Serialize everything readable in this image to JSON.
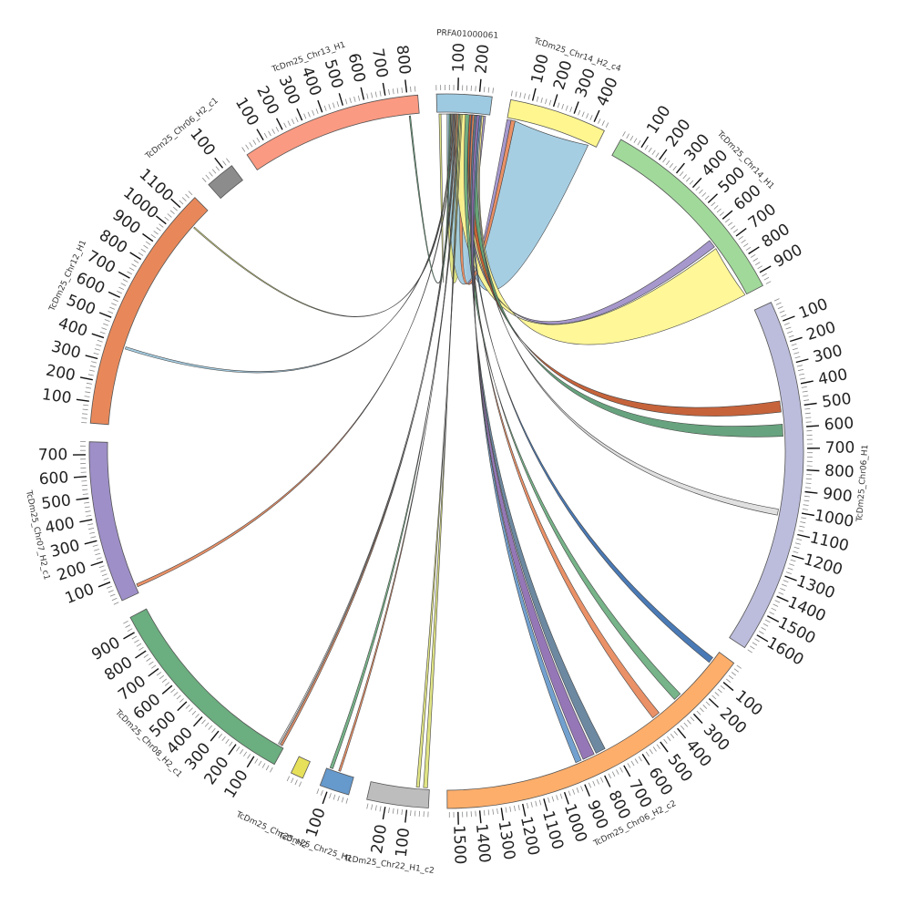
{
  "diagram": {
    "type": "circos",
    "chromosomes": [
      {
        "id": "PRFA",
        "label": "PRFA01000061",
        "length": 260,
        "color": "#9ecae1",
        "tick_step": 100,
        "reverse": false
      },
      {
        "id": "C14c4",
        "label": "TcDm25_Chr14_H2_c4",
        "length": 460,
        "color": "#fff68f",
        "tick_step": 100,
        "reverse": false
      },
      {
        "id": "C14H1",
        "label": "TcDm25_Chr14_H1",
        "length": 960,
        "color": "#a1d99b",
        "tick_step": 100,
        "reverse": false
      },
      {
        "id": "C06H1",
        "label": "TcDm25_Chr06_H1",
        "length": 1680,
        "color": "#bcbddc",
        "tick_step": 100,
        "reverse": false
      },
      {
        "id": "C06c2",
        "label": "TcDm25_Chr06_H2_c2",
        "length": 1550,
        "color": "#fdae6b",
        "tick_step": 100,
        "reverse": false
      },
      {
        "id": "C22",
        "label": "TcDm25_Chr22_H1_c2",
        "length": 290,
        "color": "#bdbdbd",
        "tick_step": 100,
        "reverse": false
      },
      {
        "id": "CB",
        "label": "TcDm25_Chr25_H1",
        "length": 140,
        "color": "#6699cc",
        "tick_step": 100,
        "reverse": false
      },
      {
        "id": "CA",
        "label": "TcDm25_Chr25_H2",
        "length": 60,
        "color": "#e6e05a",
        "tick_step": 100,
        "reverse": false
      },
      {
        "id": "C08",
        "label": "TcDm25_Chr08_H2_c1",
        "length": 970,
        "color": "#6bae7f",
        "tick_step": 100,
        "reverse": false
      },
      {
        "id": "C07",
        "label": "TcDm25_Chr07_H2_c1",
        "length": 760,
        "color": "#9e8fc8",
        "tick_step": 100,
        "reverse": false
      },
      {
        "id": "C12",
        "label": "TcDm25_Chr12_H1",
        "length": 1180,
        "color": "#e8885a",
        "tick_step": 100,
        "reverse": false
      },
      {
        "id": "C06c1",
        "label": "TcDm25_Chr06_H2_c1",
        "length": 140,
        "color": "#8c8c8c",
        "tick_step": 100,
        "reverse": false
      },
      {
        "id": "C13",
        "label": "TcDm25_Chr13_H1",
        "length": 850,
        "color": "#fb9a82",
        "tick_step": 100,
        "reverse": false
      }
    ],
    "links": [
      {
        "from": [
          "PRFA",
          10,
          200
        ],
        "to": [
          "PRFA",
          20,
          50
        ],
        "color": "#dde27a"
      },
      {
        "from": [
          "PRFA",
          200,
          240
        ],
        "to": [
          "C14c4",
          0,
          20
        ],
        "color": "#9e8fc8"
      },
      {
        "from": [
          "PRFA",
          50,
          160
        ],
        "to": [
          "C14c4",
          40,
          420
        ],
        "color": "#9ecae1"
      },
      {
        "from": [
          "PRFA",
          130,
          150
        ],
        "to": [
          "C14c4",
          20,
          40
        ],
        "color": "#e8885a"
      },
      {
        "from": [
          "PRFA",
          90,
          230
        ],
        "to": [
          "C14H1",
          690,
          960
        ],
        "color": "#fff68f"
      },
      {
        "from": [
          "PRFA",
          150,
          160
        ],
        "to": [
          "C14H1",
          640,
          680
        ],
        "color": "#9e8fc8"
      },
      {
        "from": [
          "PRFA",
          160,
          185
        ],
        "to": [
          "C06H1",
          465,
          520
        ],
        "color": "#c1562a"
      },
      {
        "from": [
          "PRFA",
          185,
          215
        ],
        "to": [
          "C06H1",
          580,
          640
        ],
        "color": "#5a9b73"
      },
      {
        "from": [
          "PRFA",
          215,
          222
        ],
        "to": [
          "C06H1",
          1000,
          1030
        ],
        "color": "#dddddd"
      },
      {
        "from": [
          "PRFA",
          170,
          180
        ],
        "to": [
          "C06c2",
          40,
          70
        ],
        "color": "#3b6fb0"
      },
      {
        "from": [
          "PRFA",
          140,
          160
        ],
        "to": [
          "C06c2",
          280,
          320
        ],
        "color": "#6bae7f"
      },
      {
        "from": [
          "PRFA",
          175,
          185
        ],
        "to": [
          "C06c2",
          420,
          460
        ],
        "color": "#e8885a"
      },
      {
        "from": [
          "PRFA",
          185,
          195
        ],
        "to": [
          "C06c2",
          740,
          790
        ],
        "color": "#5f7f99"
      },
      {
        "from": [
          "PRFA",
          195,
          210
        ],
        "to": [
          "C06c2",
          800,
          860
        ],
        "color": "#8c6bb1"
      },
      {
        "from": [
          "PRFA",
          210,
          218
        ],
        "to": [
          "C06c2",
          870,
          900
        ],
        "color": "#6699cc"
      },
      {
        "from": [
          "PRFA",
          110,
          118
        ],
        "to": [
          "C22",
          10,
          30
        ],
        "color": "#dde27a"
      },
      {
        "from": [
          "PRFA",
          118,
          124
        ],
        "to": [
          "C22",
          50,
          65
        ],
        "color": "#dde27a"
      },
      {
        "from": [
          "PRFA",
          100,
          106
        ],
        "to": [
          "CB",
          70,
          80
        ],
        "color": "#e8885a"
      },
      {
        "from": [
          "PRFA",
          106,
          112
        ],
        "to": [
          "CB",
          110,
          125
        ],
        "color": "#6bae7f"
      },
      {
        "from": [
          "PRFA",
          92,
          96
        ],
        "to": [
          "C08",
          10,
          20
        ],
        "color": "#e8885a"
      },
      {
        "from": [
          "PRFA",
          86,
          90
        ],
        "to": [
          "C08",
          25,
          32
        ],
        "color": "#eeeeee"
      },
      {
        "from": [
          "PRFA",
          80,
          84
        ],
        "to": [
          "C07",
          30,
          45
        ],
        "color": "#e8885a"
      },
      {
        "from": [
          "PRFA",
          74,
          78
        ],
        "to": [
          "C12",
          380,
          392
        ],
        "color": "#9ecae1"
      },
      {
        "from": [
          "PRFA",
          68,
          72
        ],
        "to": [
          "C12",
          1070,
          1076
        ],
        "color": "#dde27a"
      },
      {
        "from": [
          "C13",
          800,
          806
        ],
        "to": [
          "PRFA",
          60,
          66
        ],
        "color": "#5a9b73"
      }
    ]
  }
}
